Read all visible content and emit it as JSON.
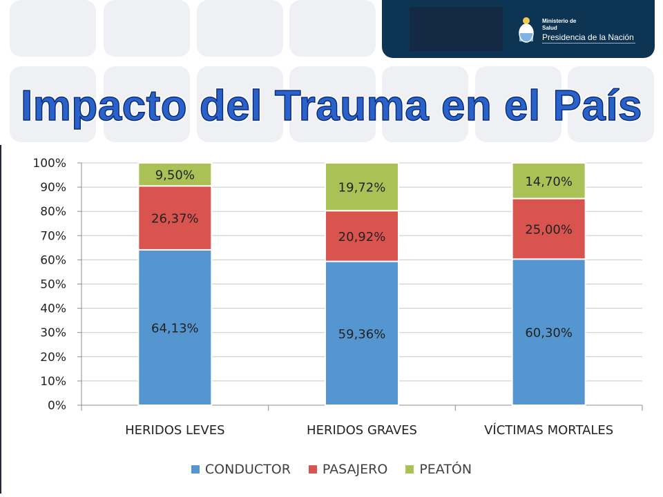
{
  "header": {
    "ministry_line1": "Ministerio de",
    "ministry_line2": "Salud",
    "ministry_line3": "Presidencia de la Nación"
  },
  "title": "Impacto del Trauma en el País",
  "colors": {
    "conductor": "#5596d0",
    "pasajero": "#d9534f",
    "peaton": "#a9c155",
    "title": "#2a62c7",
    "header": "#0d3453"
  },
  "chart_data": {
    "type": "bar",
    "stacked": true,
    "categories": [
      "HERIDOS LEVES",
      "HERIDOS GRAVES",
      "VÍCTIMAS MORTALES"
    ],
    "series": [
      {
        "name": "CONDUCTOR",
        "values": [
          64.13,
          59.36,
          60.3
        ],
        "labels": [
          "64,13%",
          "59,36%",
          "60,30%"
        ]
      },
      {
        "name": "PASAJERO",
        "values": [
          26.37,
          20.92,
          25.0
        ],
        "labels": [
          "26,37%",
          "20,92%",
          "25,00%"
        ]
      },
      {
        "name": "PEATÓN",
        "values": [
          9.5,
          19.72,
          14.7
        ],
        "labels": [
          "9,50%",
          "19,72%",
          "14,70%"
        ]
      }
    ],
    "ylim": [
      0,
      100
    ],
    "yticks": [
      "0%",
      "10%",
      "20%",
      "30%",
      "40%",
      "50%",
      "60%",
      "70%",
      "80%",
      "90%",
      "100%"
    ],
    "grid": true,
    "legend": "bottom"
  }
}
